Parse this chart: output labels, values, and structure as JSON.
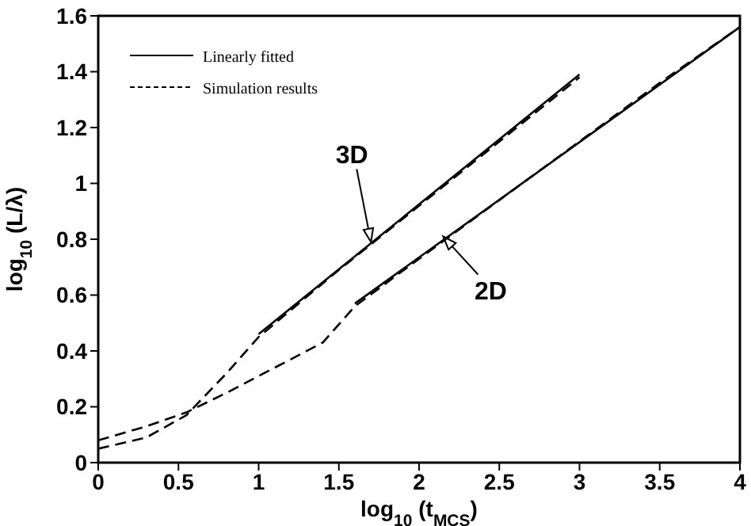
{
  "chart_data": {
    "type": "line",
    "xlabel": "log$_{10}$ (t$_{MCS}$)",
    "ylabel": "log$_{10}$ (L/λ)",
    "xlim": [
      0,
      4
    ],
    "xticks": [
      0,
      0.5,
      1,
      1.5,
      2,
      2.5,
      3,
      3.5,
      4
    ],
    "ylim": [
      0,
      1.6
    ],
    "yticks": [
      0,
      0.2,
      0.4,
      0.6,
      0.8,
      1,
      1.2,
      1.4,
      1.6
    ],
    "grid": false,
    "legend": "top left",
    "marker": "none",
    "series": [
      {
        "name": "Linearly fitted",
        "color": "#000000",
        "line_style": "solid",
        "x": [
          1,
          3
        ],
        "values": [
          0.46,
          1.39
        ]
      },
      {
        "name": "Simulation results",
        "color": "#000000",
        "line_style": "dashed",
        "x": [
          0,
          0.3,
          0.55,
          0.8,
          1,
          1.5,
          2,
          2.5,
          3
        ],
        "values": [
          0.05,
          0.09,
          0.17,
          0.32,
          0.45,
          0.69,
          0.92,
          1.15,
          1.38
        ]
      },
      {
        "color": "#000000",
        "line_style": "solid",
        "x": [
          1.6,
          4
        ],
        "values": [
          0.57,
          1.56
        ]
      },
      {
        "color": "#000000",
        "line_style": "dashed",
        "x": [
          0,
          0.3,
          0.55,
          0.8,
          1,
          1.2,
          1.4,
          1.6,
          2,
          2.5,
          3,
          3.5,
          4
        ],
        "values": [
          0.08,
          0.13,
          0.18,
          0.25,
          0.31,
          0.37,
          0.43,
          0.56,
          0.73,
          0.94,
          1.15,
          1.36,
          1.56
        ]
      }
    ],
    "annotations": [
      {
        "text": "3D",
        "x": 1.7,
        "y": 0.79
      },
      {
        "text": "2D",
        "x": 2.15,
        "y": 0.81
      }
    ]
  }
}
